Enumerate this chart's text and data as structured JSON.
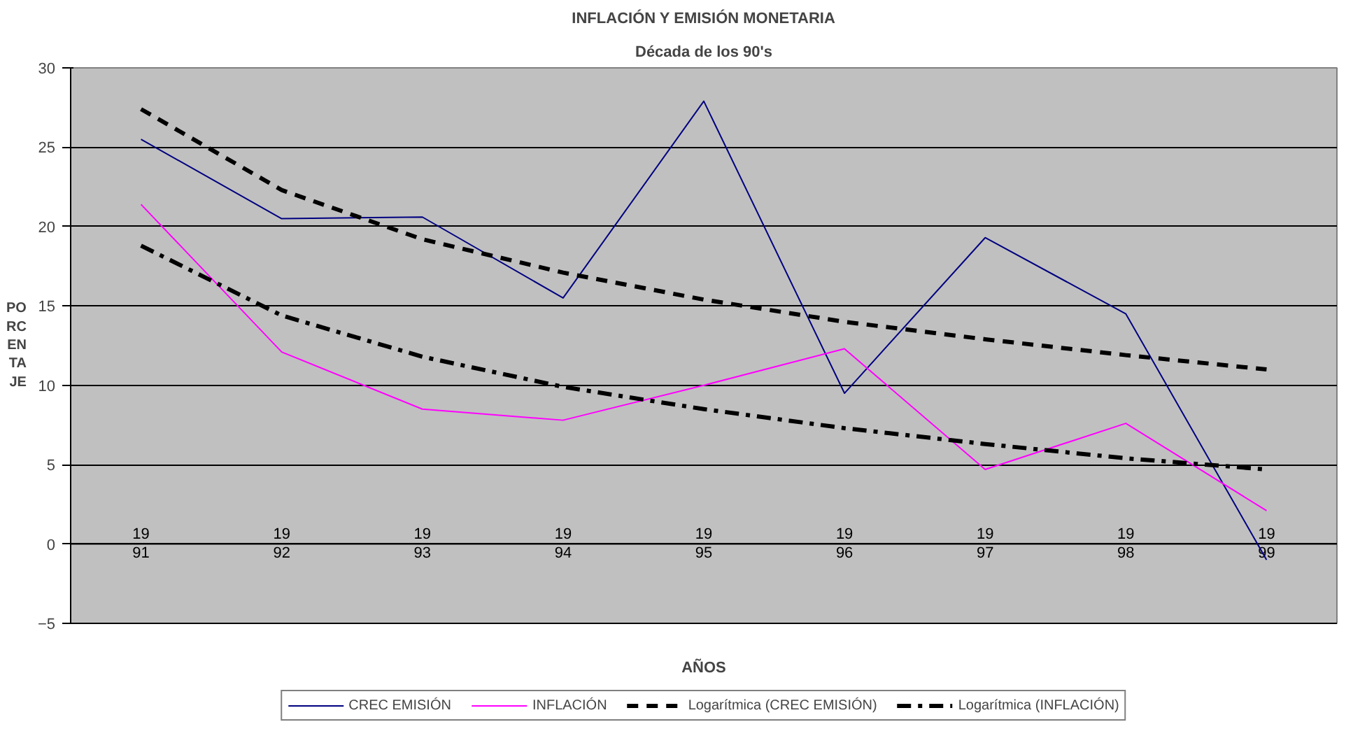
{
  "chart_data": {
    "type": "line",
    "title": "INFLACIÓN Y EMISIÓN MONETARIA",
    "subtitle": "Década de los 90's",
    "xlabel": "AÑOS",
    "ylabel": "PORCENTAJE",
    "categories": [
      "1991",
      "1992",
      "1993",
      "1994",
      "1995",
      "1996",
      "1997",
      "1998",
      "1999"
    ],
    "series": [
      {
        "name": "CREC EMISIÓN",
        "color": "#000080",
        "line_style": "solid",
        "values": [
          25.5,
          20.5,
          20.6,
          15.5,
          27.9,
          9.5,
          19.3,
          14.5,
          -1.0
        ]
      },
      {
        "name": "INFLACIÓN",
        "color": "#ff00ff",
        "line_style": "solid",
        "values": [
          21.4,
          12.1,
          8.5,
          7.8,
          10.0,
          12.3,
          4.7,
          7.6,
          2.1
        ]
      },
      {
        "name": "Logarítmica (CREC EMISIÓN)",
        "color": "#000000",
        "line_style": "dashed",
        "values": [
          27.4,
          22.3,
          19.2,
          17.1,
          15.4,
          14.0,
          12.9,
          11.9,
          11.0
        ]
      },
      {
        "name": "Logarítmica (INFLACIÓN)",
        "color": "#000000",
        "line_style": "dashdot",
        "values": [
          18.8,
          14.4,
          11.8,
          9.9,
          8.5,
          7.3,
          6.3,
          5.4,
          4.7
        ]
      }
    ],
    "ylim": [
      -5,
      30
    ],
    "yticks": [
      -5,
      0,
      5,
      10,
      15,
      20,
      25,
      30
    ],
    "grid": "y",
    "legend": "bottom",
    "marker": "none"
  }
}
